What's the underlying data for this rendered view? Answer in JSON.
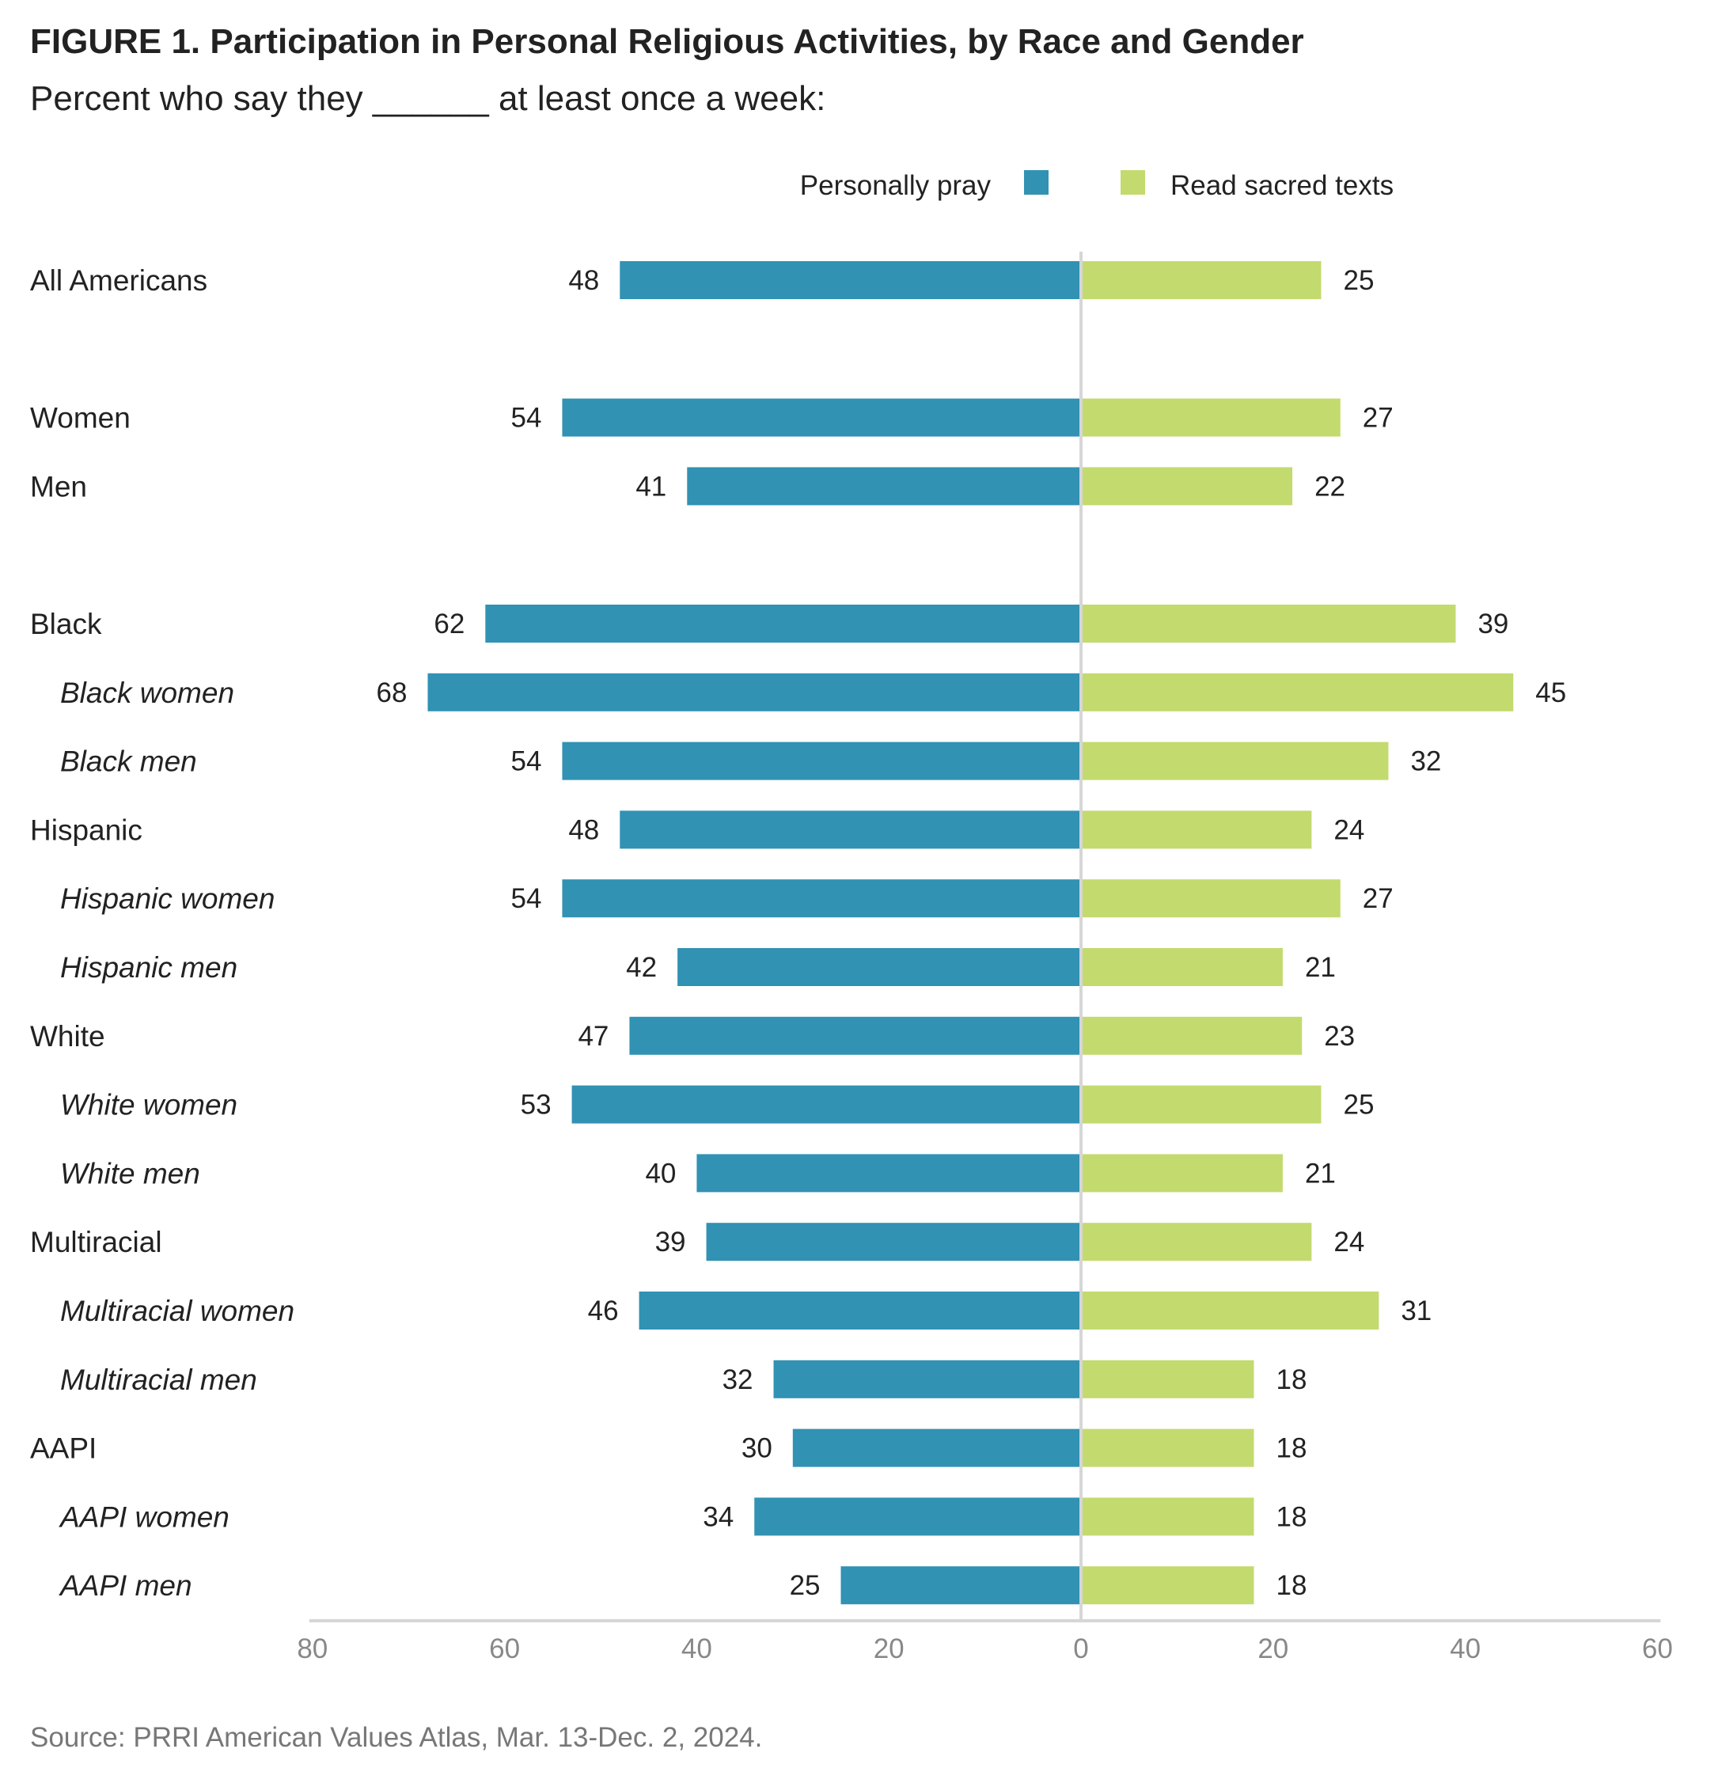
{
  "header": {
    "title": "FIGURE 1.  Participation in Personal Religious Activities, by Race and Gender",
    "subtitle": "Percent who say they ______ at least once a week:"
  },
  "footer": {
    "source": "Source: PRRI American Values Atlas, Mar. 13-Dec. 2, 2024."
  },
  "chart_data": {
    "type": "bar",
    "orientation": "horizontal-diverging",
    "title": "FIGURE 1.  Participation in Personal Religious Activities, by Race and Gender",
    "subtitle": "Percent who say they ______ at least once a week:",
    "legend_position": "top-center",
    "grid": false,
    "axis": {
      "left_range": [
        0,
        80
      ],
      "right_range": [
        0,
        60
      ],
      "ticks": [
        "80",
        "60",
        "40",
        "20",
        "0",
        "20",
        "40",
        "60"
      ]
    },
    "categories": [
      "All Americans",
      "Women",
      "Men",
      "Black",
      "Black women",
      "Black men",
      "Hispanic",
      "Hispanic women",
      "Hispanic men",
      "White",
      "White women",
      "White men",
      "Multiracial",
      "Multiracial women",
      "Multiracial men",
      "AAPI",
      "AAPI women",
      "AAPI men"
    ],
    "subgroup": [
      false,
      false,
      false,
      false,
      true,
      true,
      false,
      true,
      true,
      false,
      true,
      true,
      false,
      true,
      true,
      false,
      true,
      true
    ],
    "series": [
      {
        "name": "Personally pray",
        "side": "left",
        "color": "#3192b3",
        "values": [
          48,
          54,
          41,
          62,
          68,
          54,
          48,
          54,
          42,
          47,
          53,
          40,
          39,
          46,
          32,
          30,
          34,
          25
        ]
      },
      {
        "name": "Read sacred texts",
        "side": "right",
        "color": "#c3da6e",
        "values": [
          25,
          27,
          22,
          39,
          45,
          32,
          24,
          27,
          21,
          23,
          25,
          21,
          24,
          31,
          18,
          18,
          18,
          18
        ]
      }
    ]
  }
}
